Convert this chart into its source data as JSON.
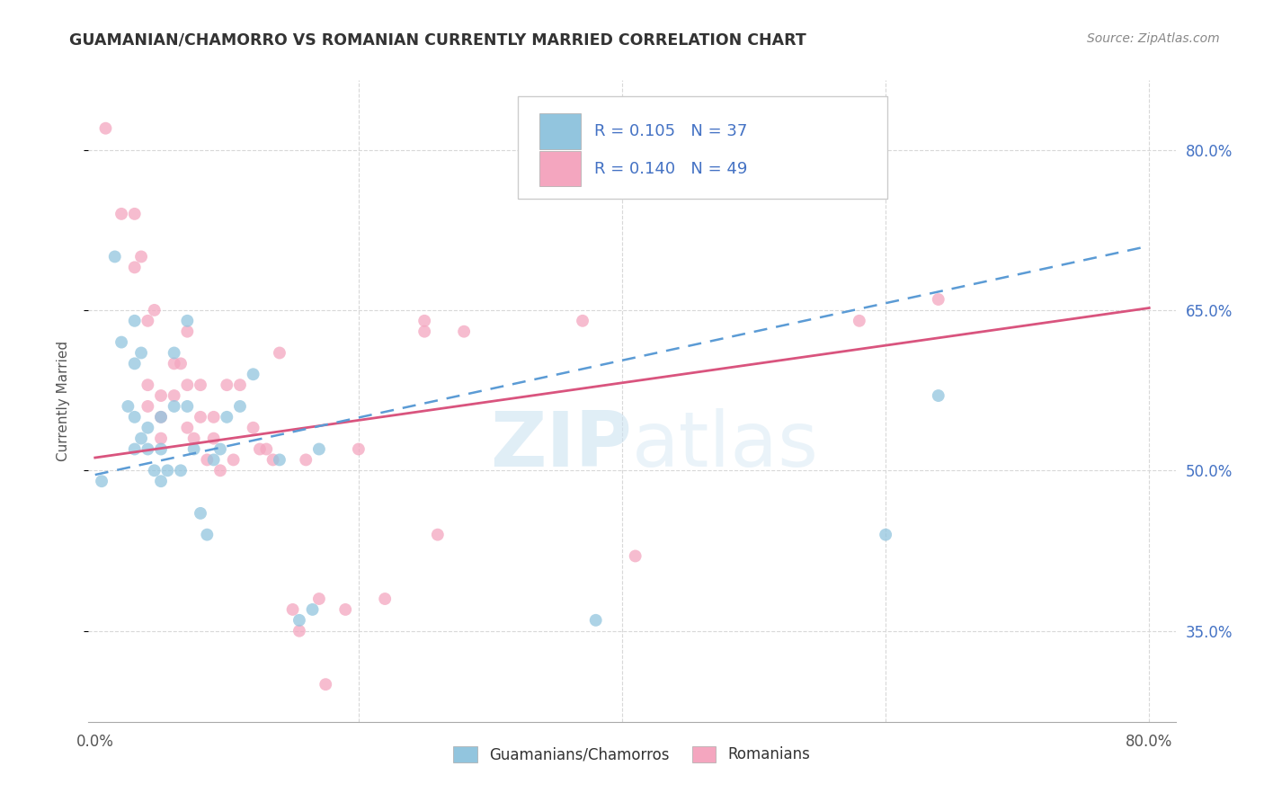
{
  "title": "GUAMANIAN/CHAMORRO VS ROMANIAN CURRENTLY MARRIED CORRELATION CHART",
  "source": "Source: ZipAtlas.com",
  "ylabel": "Currently Married",
  "ytick_labels": [
    "35.0%",
    "50.0%",
    "65.0%",
    "80.0%"
  ],
  "ytick_values": [
    0.35,
    0.5,
    0.65,
    0.8
  ],
  "xlim": [
    -0.005,
    0.82
  ],
  "ylim": [
    0.265,
    0.865
  ],
  "legend_labels": [
    "Guamanians/Chamorros",
    "Romanians"
  ],
  "R_blue": "R = 0.105",
  "N_blue": "N = 37",
  "R_pink": "R = 0.140",
  "N_pink": "N = 49",
  "blue_color": "#92c5de",
  "pink_color": "#f4a6bf",
  "blue_line_color": "#5b9bd5",
  "pink_line_color": "#d9547e",
  "grid_color": "#d8d8d8",
  "watermark_color": "#c8e0f0",
  "blue_scatter_x": [
    0.005,
    0.015,
    0.02,
    0.025,
    0.03,
    0.03,
    0.03,
    0.03,
    0.035,
    0.035,
    0.04,
    0.04,
    0.045,
    0.05,
    0.05,
    0.05,
    0.055,
    0.06,
    0.06,
    0.065,
    0.07,
    0.07,
    0.075,
    0.08,
    0.085,
    0.09,
    0.095,
    0.1,
    0.11,
    0.12,
    0.14,
    0.155,
    0.165,
    0.17,
    0.38,
    0.6,
    0.64
  ],
  "blue_scatter_y": [
    0.49,
    0.7,
    0.62,
    0.56,
    0.64,
    0.6,
    0.55,
    0.52,
    0.61,
    0.53,
    0.54,
    0.52,
    0.5,
    0.55,
    0.52,
    0.49,
    0.5,
    0.61,
    0.56,
    0.5,
    0.64,
    0.56,
    0.52,
    0.46,
    0.44,
    0.51,
    0.52,
    0.55,
    0.56,
    0.59,
    0.51,
    0.36,
    0.37,
    0.52,
    0.36,
    0.44,
    0.57
  ],
  "pink_scatter_x": [
    0.008,
    0.02,
    0.03,
    0.03,
    0.035,
    0.04,
    0.04,
    0.04,
    0.045,
    0.05,
    0.05,
    0.05,
    0.06,
    0.06,
    0.065,
    0.07,
    0.07,
    0.07,
    0.075,
    0.08,
    0.08,
    0.085,
    0.09,
    0.09,
    0.095,
    0.1,
    0.105,
    0.11,
    0.12,
    0.125,
    0.13,
    0.135,
    0.14,
    0.15,
    0.155,
    0.16,
    0.17,
    0.175,
    0.19,
    0.2,
    0.22,
    0.25,
    0.25,
    0.26,
    0.28,
    0.37,
    0.41,
    0.58,
    0.64
  ],
  "pink_scatter_y": [
    0.82,
    0.74,
    0.74,
    0.69,
    0.7,
    0.64,
    0.58,
    0.56,
    0.65,
    0.57,
    0.55,
    0.53,
    0.6,
    0.57,
    0.6,
    0.63,
    0.58,
    0.54,
    0.53,
    0.58,
    0.55,
    0.51,
    0.55,
    0.53,
    0.5,
    0.58,
    0.51,
    0.58,
    0.54,
    0.52,
    0.52,
    0.51,
    0.61,
    0.37,
    0.35,
    0.51,
    0.38,
    0.3,
    0.37,
    0.52,
    0.38,
    0.64,
    0.63,
    0.44,
    0.63,
    0.64,
    0.42,
    0.64,
    0.66
  ],
  "blue_trend_x": [
    0.0,
    0.8
  ],
  "blue_trend_y": [
    0.496,
    0.71
  ],
  "pink_trend_x": [
    0.0,
    0.8
  ],
  "pink_trend_y": [
    0.512,
    0.652
  ]
}
